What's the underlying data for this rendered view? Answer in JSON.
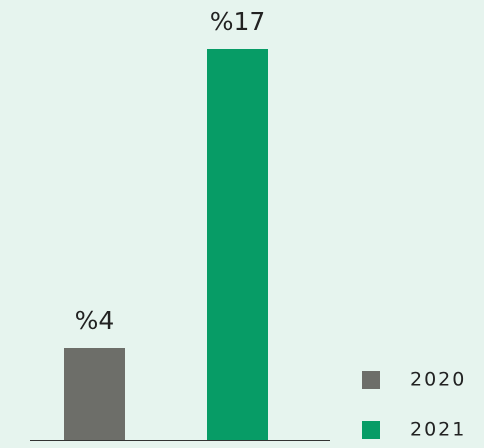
{
  "chart_data": {
    "type": "bar",
    "series": [
      {
        "name": "2020",
        "color": "#6d6e69",
        "values": [
          4
        ],
        "value_labels": [
          "%4"
        ]
      },
      {
        "name": "2021",
        "color": "#079c66",
        "values": [
          17
        ],
        "value_labels": [
          "%17"
        ]
      }
    ],
    "ylim": [
      0,
      19
    ]
  }
}
